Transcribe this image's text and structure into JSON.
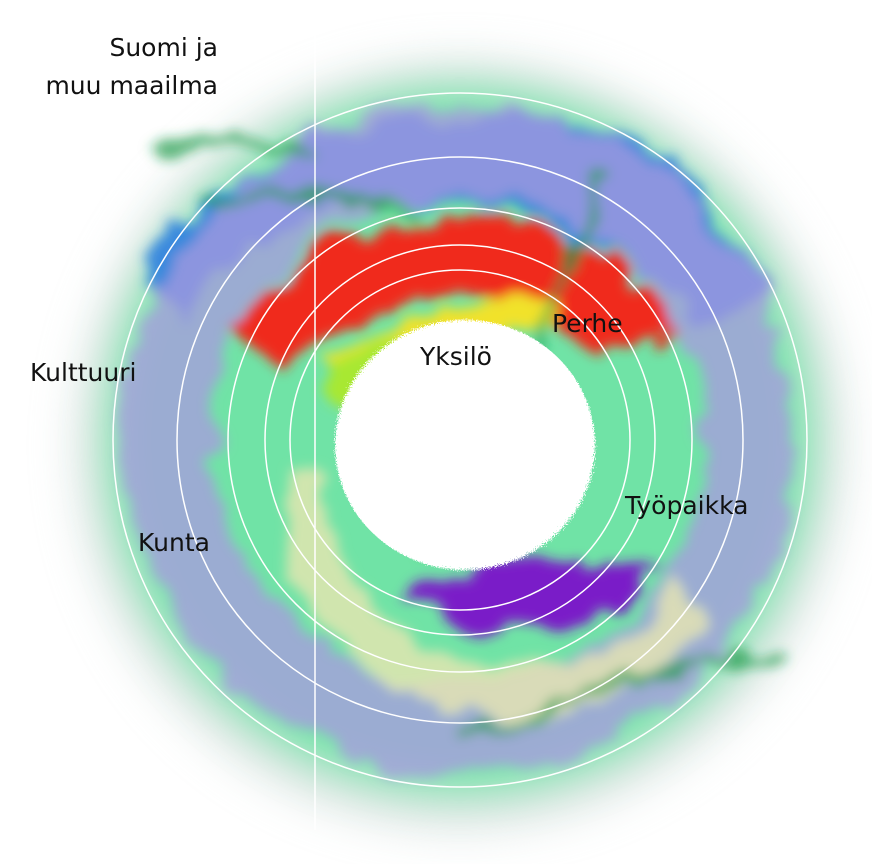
{
  "labels": {
    "world": [
      "Suomi ja",
      "muu maailma"
    ],
    "culture": "Kulttuuri",
    "municipality": "Kunta",
    "workplace": "Työpaikka",
    "family": "Perhe",
    "individual": "Yksilö"
  }
}
